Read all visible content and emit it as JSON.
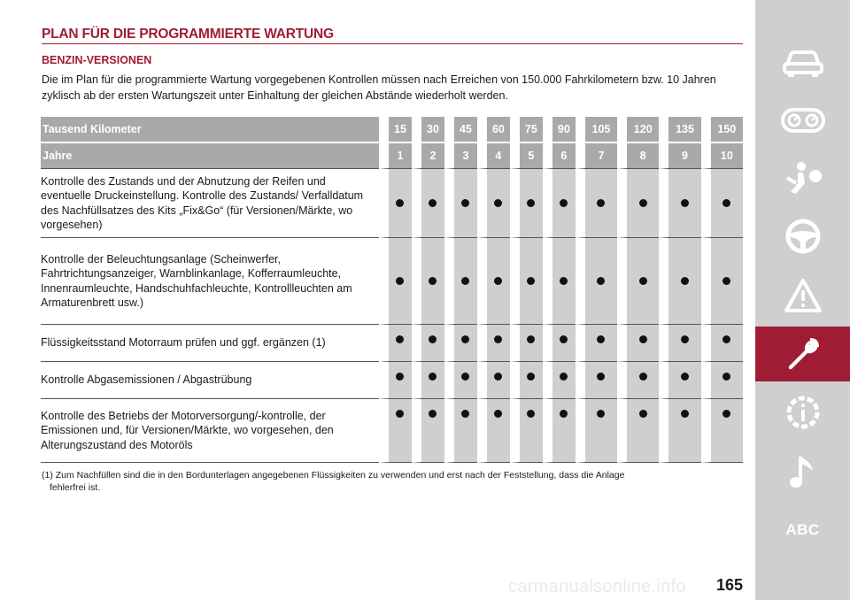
{
  "header": {
    "title": "PLAN FÜR DIE PROGRAMMIERTE WARTUNG",
    "subtitle": "BENZIN-VERSIONEN",
    "intro": "Die im Plan für die programmierte Wartung vorgegebenen Kontrollen müssen nach Erreichen von 150.000 Fahrkilometern bzw. 10 Jahren zyklisch ab der ersten Wartungszeit unter Einhaltung der gleichen Abstände wiederholt werden."
  },
  "table": {
    "km_label": "Tausend Kilometer",
    "km": [
      "15",
      "30",
      "45",
      "60",
      "75",
      "90",
      "105",
      "120",
      "135",
      "150"
    ],
    "years_label": "Jahre",
    "years": [
      "1",
      "2",
      "3",
      "4",
      "5",
      "6",
      "7",
      "8",
      "9",
      "10"
    ],
    "rows": [
      {
        "text": "Kontrolle des Zustands und der Abnutzung der Reifen und eventuelle Druckeinstellung. Kontrolle des Zustands/ Verfalldatum des Nachfüllsatzes des Kits „Fix&Go“ (für Versionen/Märkte, wo vorgesehen)"
      },
      {
        "text": "Kontrolle der Beleuchtungsanlage (Scheinwerfer, Fahrtrichtungsanzeiger, Warnblinkanlage, Kofferraumleuchte, Innenraumleuchte, Handschuhfachleuchte, Kontrollleuchten am Armaturenbrett usw.)"
      },
      {
        "text": "Flüssigkeitsstand Motorraum prüfen und ggf. ergänzen (1)"
      },
      {
        "text": "Kontrolle Abgasemissionen / Abgastrübung"
      },
      {
        "text": "Kontrolle des Betriebs der Motorversorgung/-kontrolle, der Emissionen und, für Versionen/Märkte, wo vorgesehen, den Alterungszustand des Motoröls"
      }
    ]
  },
  "footnote": {
    "marker": "(1)",
    "line1": "Zum Nachfüllen sind die in den Bordunterlagen angegebenen Flüssigkeiten zu verwenden und erst nach der Feststellung, dass die Anlage",
    "line2": "fehlerfrei ist."
  },
  "sidebar": {
    "items": [
      {
        "icon": "car-icon"
      },
      {
        "icon": "dashboard-gauges-icon"
      },
      {
        "icon": "airbag-seat-icon"
      },
      {
        "icon": "steering-wheel-icon"
      },
      {
        "icon": "warning-triangle-icon"
      },
      {
        "icon": "wrench-icon",
        "active": true
      },
      {
        "icon": "info-gear-icon"
      },
      {
        "icon": "music-note-icon"
      },
      {
        "label": "ABC"
      }
    ],
    "active_color": "#a01c34",
    "background_color": "#cfcfcf"
  },
  "page_number": "165",
  "watermark": "carmanualsonline.info"
}
